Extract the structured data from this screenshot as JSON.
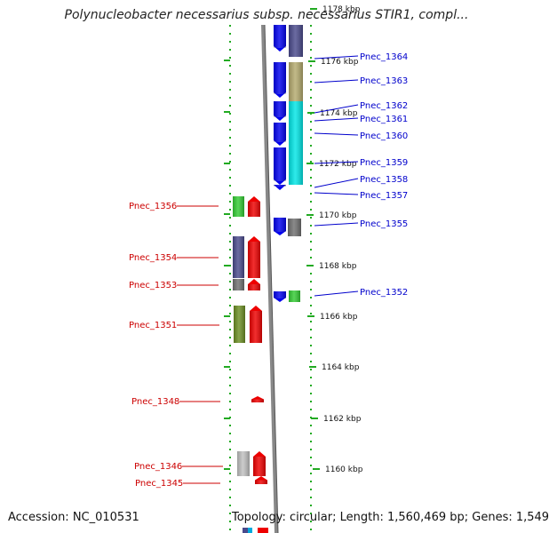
{
  "title": "Polynucleobacter necessarius subsp. necessarius STIR1, compl...",
  "footer": {
    "accession_label": "Accession: NC_010531",
    "summary": "Topology: circular; Length: 1,560,469 bp; Genes: 1,549"
  },
  "colors": {
    "forward_label": "#0000cc",
    "reverse_label": "#cc0000",
    "ruler_dots": "#22aa22",
    "backbone": "#888888"
  },
  "ruler": {
    "unit": "kbp",
    "ticks": [
      {
        "label": "1178 kbp"
      },
      {
        "label": "1176 kbp"
      },
      {
        "label": "1174 kbp"
      },
      {
        "label": "1172 kbp"
      },
      {
        "label": "1170 kbp"
      },
      {
        "label": "1168 kbp"
      },
      {
        "label": "1166 kbp"
      },
      {
        "label": "1164 kbp"
      },
      {
        "label": "1162 kbp"
      },
      {
        "label": "1160 kbp"
      }
    ]
  },
  "forward_genes": [
    {
      "name": "Pnec_1364",
      "cog_color": "#4a4a8c"
    },
    {
      "name": "Pnec_1363",
      "cog_color": "#b4aa6e"
    },
    {
      "name": "Pnec_1362",
      "cog_color": "#00e6e6"
    },
    {
      "name": "Pnec_1361",
      "cog_color": "#00e6e6"
    },
    {
      "name": "Pnec_1360",
      "cog_color": "#00e6e6"
    },
    {
      "name": "Pnec_1359",
      "cog_color": "#00e6e6"
    },
    {
      "name": "Pnec_1358",
      "cog_color": "#0000ee"
    },
    {
      "name": "Pnec_1357",
      "cog_color": "#0000ee"
    },
    {
      "name": "Pnec_1355",
      "cog_color": "#707070"
    },
    {
      "name": "Pnec_1352",
      "cog_color": "#33cc33"
    }
  ],
  "reverse_genes": [
    {
      "name": "Pnec_1356",
      "cog_color": "#33cc33"
    },
    {
      "name": "Pnec_1354",
      "cog_color": "#4a4a8c"
    },
    {
      "name": "Pnec_1353",
      "cog_color": "#707070"
    },
    {
      "name": "Pnec_1351",
      "cog_color": "#6b8e23"
    },
    {
      "name": "Pnec_1348",
      "cog_color": "#ee0000"
    },
    {
      "name": "Pnec_1346",
      "cog_color": "#c0c0c0"
    },
    {
      "name": "Pnec_1345",
      "cog_color": "#ee0000"
    }
  ]
}
